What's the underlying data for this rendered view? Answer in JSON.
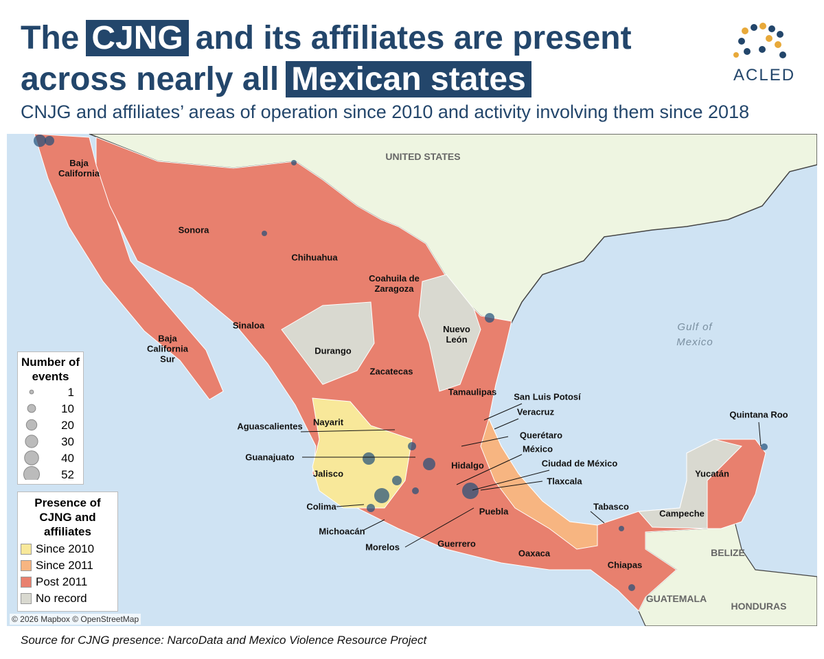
{
  "header": {
    "title_line1": [
      "The",
      "CJNG",
      "and its affiliates are present"
    ],
    "title_line2": [
      "across nearly all",
      "Mexican states"
    ],
    "subtitle": "CNJG and affiliates’ areas of operation since 2010 and activity involving them since 2018"
  },
  "logo": "ACLED",
  "map": {
    "country_labels": [
      "UNITED STATES",
      "BELIZE",
      "GUATEMALA",
      "HONDURAS"
    ],
    "water_label": "Gulf of Mexico",
    "state_labels": [
      "Baja California",
      "Sonora",
      "Chihuahua",
      "Coahuila de Zaragoza",
      "Sinaloa",
      "Baja California Sur",
      "Durango",
      "Nuevo León",
      "Zacatecas",
      "Tamaulipas",
      "San Luis Potosí",
      "Veracruz",
      "Nayarit",
      "Aguascalientes",
      "Querétaro",
      "Guanajuato",
      "México",
      "Ciudad de México",
      "Hidalgo",
      "Jalisco",
      "Tlaxcala",
      "Colima",
      "Tabasco",
      "Campeche",
      "Yucatán",
      "Quintana Roo",
      "Puebla",
      "Michoacán",
      "Oaxaca",
      "Morelos",
      "Guerrero",
      "Chiapas"
    ],
    "attribution": "© 2026 Mapbox © OpenStreetMap"
  },
  "legend_events": {
    "title": "Number of events",
    "sizes": [
      1,
      10,
      20,
      30,
      40,
      52
    ]
  },
  "legend_presence": {
    "title": "Presence of CJNG and affiliates",
    "items": [
      {
        "label": "Since 2010",
        "color": "#f8e89a"
      },
      {
        "label": "Since 2011",
        "color": "#f7b581"
      },
      {
        "label": "Post 2011",
        "color": "#e8806e"
      },
      {
        "label": "No record",
        "color": "#d9d9d0"
      }
    ]
  },
  "source": "Source for CJNG presence: NarcoData and Mexico Violence Resource Project"
}
